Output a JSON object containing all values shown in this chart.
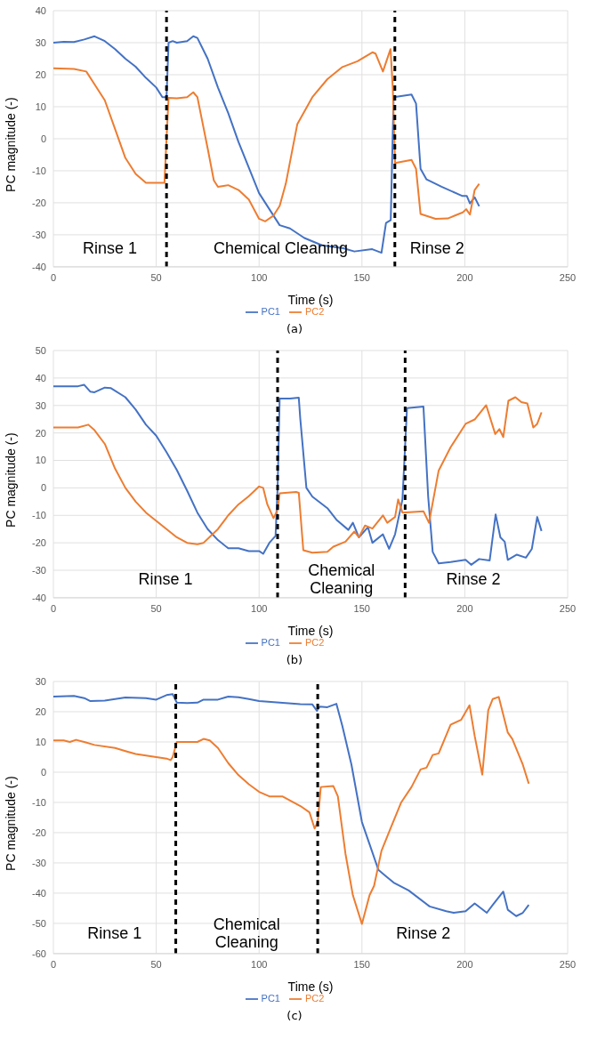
{
  "chart_data": [
    {
      "type": "line",
      "xlabel": "Time (s)",
      "ylabel": "PC magnitude (-)",
      "xlim": [
        0,
        250
      ],
      "xticks": [
        0,
        50,
        100,
        150,
        200,
        250
      ],
      "ylim": [
        -40,
        40
      ],
      "yticks": [
        -40,
        -30,
        -20,
        -10,
        0,
        10,
        20,
        30,
        40
      ],
      "grid": true,
      "legend": "bottom",
      "series": [
        {
          "name": "PC1",
          "color": "#4472c4",
          "x": [
            0,
            5,
            10,
            15,
            20,
            25,
            30,
            35,
            40,
            45,
            50,
            53,
            55,
            56,
            58,
            60,
            65,
            68,
            70,
            75,
            80,
            85,
            90,
            95,
            100,
            105,
            110,
            115,
            122,
            130.6,
            140.9,
            146.3,
            155,
            159.5,
            161.7,
            164,
            165.4,
            174.1,
            176.3,
            178.5,
            181.4,
            188.7,
            198.9,
            201,
            202.5,
            204.8,
            207
          ],
          "values": [
            30,
            30.3,
            30.2,
            31,
            32,
            30.5,
            28,
            25,
            22.5,
            19,
            16,
            13,
            13,
            30,
            30.5,
            30,
            30.5,
            32,
            31.5,
            25,
            16,
            8,
            -1,
            -9,
            -17,
            -22,
            -27,
            -28,
            -31,
            -33.3,
            -34.2,
            -35.2,
            -34.5,
            -35.6,
            -26.3,
            -25.4,
            13,
            13.8,
            11,
            -9.4,
            -12.7,
            -15,
            -17.9,
            -17.9,
            -20.2,
            -18.3,
            -21.1
          ]
        },
        {
          "name": "PC2",
          "color": "#ed7d31",
          "x": [
            0,
            10,
            16,
            20,
            25,
            30,
            35,
            40,
            45,
            50,
            54,
            55,
            56,
            60,
            65,
            68,
            70,
            75,
            78,
            80,
            85,
            90,
            95,
            100,
            103,
            107,
            110,
            113,
            116,
            118.6,
            125.9,
            133.2,
            140.5,
            147.8,
            155.1,
            156.6,
            160.2,
            163.9,
            165,
            166.1,
            174.1,
            176.3,
            178.5,
            185.8,
            191.7,
            199,
            200.7,
            202.5,
            204.8,
            207
          ],
          "values": [
            22,
            21.8,
            21,
            17,
            12,
            3,
            -6,
            -11,
            -13.8,
            -13.8,
            -13.8,
            0,
            12.8,
            12.6,
            13,
            14.5,
            13,
            -3,
            -13,
            -15,
            -14.5,
            -16,
            -19,
            -25,
            -25.8,
            -24,
            -21,
            -14,
            -4,
            4.6,
            13,
            18.6,
            22.4,
            24.2,
            27,
            26.6,
            21,
            28,
            15.8,
            -7.6,
            -6.6,
            -9.4,
            -23.5,
            -25,
            -24.9,
            -23,
            -22,
            -23.7,
            -16,
            -14.1
          ]
        }
      ],
      "ref_lines": [
        {
          "axis": "x",
          "value": 55,
          "color": "#000000",
          "line_style": "dashed"
        },
        {
          "axis": "x",
          "value": 166,
          "color": "#000000",
          "line_style": "dashed"
        }
      ],
      "annotations": [
        "Rinse 1",
        "Chemical Cleaning",
        "Rinse 2",
        "(a)"
      ]
    },
    {
      "type": "line",
      "xlabel": "Time (s)",
      "ylabel": "PC magnitude (-)",
      "xlim": [
        0,
        250
      ],
      "xticks": [
        0,
        50,
        100,
        150,
        200,
        250
      ],
      "ylim": [
        -40,
        50
      ],
      "yticks": [
        -40,
        -30,
        -20,
        -10,
        0,
        10,
        20,
        30,
        40,
        50
      ],
      "grid": true,
      "legend": "bottom",
      "series": [
        {
          "name": "PC1",
          "color": "#4472c4",
          "x": [
            0,
            12,
            15,
            18,
            20,
            25,
            28,
            35,
            40,
            45,
            50,
            55,
            60,
            65,
            70,
            75,
            80,
            85,
            90,
            95,
            100,
            102,
            105,
            108,
            109,
            110,
            115,
            119.3,
            120,
            123,
            125.9,
            133.2,
            137.6,
            143.4,
            145.6,
            148.5,
            152.9,
            155.1,
            160.2,
            163.2,
            166.1,
            169.7,
            171.9,
            179.9,
            182.2,
            184.4,
            187.3,
            193.1,
            200.4,
            203.1,
            207,
            212.1,
            215,
            217.3,
            219.4,
            220.9,
            225.3,
            229.7,
            232.6,
            235.2,
            237.3
          ],
          "values": [
            37,
            37,
            37.5,
            35,
            34.8,
            36.5,
            36.3,
            33,
            28.5,
            23,
            19,
            13,
            6.5,
            -1,
            -9,
            -15,
            -19,
            -22,
            -22,
            -23,
            -23,
            -24,
            -20,
            -17.5,
            0,
            32.5,
            32.5,
            32.8,
            25.4,
            0,
            -3.2,
            -7.4,
            -11.6,
            -15.3,
            -12.7,
            -18,
            -14.3,
            -20,
            -16.9,
            -22.2,
            -16.9,
            -4.2,
            29,
            29.6,
            -3.2,
            -23.3,
            -27.5,
            -27,
            -26.2,
            -28,
            -25.9,
            -26.4,
            -9.7,
            -18,
            -19.6,
            -26.2,
            -24.3,
            -25.4,
            -22.2,
            -10.6,
            -15.7
          ]
        },
        {
          "name": "PC2",
          "color": "#ed7d31",
          "x": [
            0,
            12,
            17,
            20,
            25,
            30,
            35,
            40,
            45,
            50,
            55,
            60,
            65,
            70,
            73,
            80,
            85,
            90,
            95,
            100,
            102,
            104,
            107,
            109,
            110,
            118,
            119.3,
            121.5,
            125.9,
            133.2,
            136.1,
            142,
            146.3,
            148.5,
            151.5,
            155.1,
            160.2,
            162.3,
            166.1,
            167.6,
            169.7,
            179.9,
            182.6,
            187.3,
            193.1,
            200.4,
            204.8,
            210.4,
            214.8,
            216.8,
            218.7,
            221.2,
            224.6,
            227.5,
            230.4,
            233.3,
            235.2,
            237.3
          ],
          "values": [
            22,
            22,
            23,
            21,
            16,
            7,
            0,
            -5,
            -9,
            -12,
            -15,
            -18,
            -20,
            -20.5,
            -20,
            -15,
            -10,
            -6,
            -3,
            0.5,
            0,
            -6,
            -11,
            -8,
            -2,
            -1.5,
            -1.8,
            -22.7,
            -23.6,
            -23.3,
            -21.4,
            -19.6,
            -15.9,
            -18,
            -13.7,
            -14.8,
            -10,
            -12.7,
            -10.6,
            -4.2,
            -9,
            -8.5,
            -12.7,
            6.3,
            14.8,
            23.3,
            24.9,
            30.1,
            19.6,
            21.4,
            18.5,
            31.7,
            33,
            31.2,
            30.7,
            22,
            23.3,
            27.5
          ]
        }
      ],
      "ref_lines": [
        {
          "axis": "x",
          "value": 109,
          "color": "#000000",
          "line_style": "dashed"
        },
        {
          "axis": "x",
          "value": 171,
          "color": "#000000",
          "line_style": "dashed"
        }
      ],
      "annotations": [
        "Rinse 1",
        "Chemical\nCleaning",
        "Rinse 2",
        "(b)"
      ]
    },
    {
      "type": "line",
      "xlabel": "Time (s)",
      "ylabel": "PC magnitude (-)",
      "xlim": [
        0,
        250
      ],
      "xticks": [
        0,
        50,
        100,
        150,
        200,
        250
      ],
      "ylim": [
        -60,
        30
      ],
      "yticks": [
        -60,
        -50,
        -40,
        -30,
        -20,
        -10,
        0,
        10,
        20,
        30
      ],
      "grid": true,
      "legend": "bottom",
      "series": [
        {
          "name": "PC1",
          "color": "#4472c4",
          "x": [
            0,
            10,
            15,
            18,
            25,
            35,
            45,
            50,
            55,
            58,
            60,
            65,
            70,
            73,
            80,
            85,
            90,
            95,
            100,
            110,
            120,
            125.9,
            128.1,
            129.5,
            133.2,
            137.6,
            140.5,
            144.9,
            150,
            153.7,
            158,
            161.7,
            165.4,
            172.7,
            182.9,
            191,
            194.6,
            200.4,
            204.8,
            210.7,
            213.6,
            218.7,
            220.9,
            225,
            228.2,
            231.1
          ],
          "values": [
            25,
            25.2,
            24.5,
            23.5,
            23.7,
            24.7,
            24.5,
            24,
            25.5,
            25.8,
            23,
            22.9,
            23,
            24,
            24,
            25,
            24.8,
            24.2,
            23.5,
            23,
            22.5,
            22.4,
            20.3,
            21.7,
            21.5,
            22.6,
            15.2,
            2.5,
            -16.5,
            -23.8,
            -32.3,
            -34.4,
            -36.5,
            -39.1,
            -44.4,
            -46,
            -46.5,
            -46,
            -43.4,
            -46.5,
            -43.9,
            -39.5,
            -45.5,
            -47.6,
            -46.5,
            -43.9
          ]
        },
        {
          "name": "PC2",
          "color": "#ed7d31",
          "x": [
            0,
            5,
            8,
            11,
            15,
            20,
            30,
            35,
            40,
            45,
            50,
            55,
            57,
            58,
            60,
            65,
            70,
            73,
            76,
            80,
            85,
            90,
            95,
            100,
            105,
            111.3,
            120.1,
            124.5,
            127,
            128.5,
            130,
            136.1,
            138.3,
            142,
            145.6,
            150,
            153.7,
            155.9,
            159.5,
            163.9,
            169,
            174.1,
            178.5,
            181.4,
            184.4,
            187.3,
            193.1,
            198.2,
            202.3,
            204.8,
            208.5,
            211.4,
            213.6,
            216.5,
            220.9,
            223.1,
            228.2,
            231.1
          ],
          "values": [
            10.5,
            10.5,
            10,
            10.7,
            10,
            9,
            8,
            7,
            6,
            5.5,
            5,
            4.5,
            4,
            5,
            10,
            10,
            10,
            11,
            10.5,
            8,
            3,
            -1,
            -4,
            -6.5,
            -8,
            -8,
            -11.2,
            -13.3,
            -18.6,
            -16.5,
            -4.9,
            -4.6,
            -8,
            -27,
            -40.7,
            -50.2,
            -40.7,
            -37.6,
            -26,
            -18.6,
            -10.1,
            -4.9,
            0.9,
            1.5,
            5.7,
            6.2,
            15.7,
            17.3,
            22.1,
            12,
            -0.8,
            20.5,
            24.2,
            24.9,
            13.1,
            11,
            2.5,
            -3.8
          ]
        }
      ],
      "ref_lines": [
        {
          "axis": "x",
          "value": 59.5,
          "color": "#000000",
          "line_style": "dashed"
        },
        {
          "axis": "x",
          "value": 128.5,
          "color": "#000000",
          "line_style": "dashed"
        }
      ],
      "annotations": [
        "Rinse 1",
        "Chemical\nCleaning",
        "Rinse 2",
        "(c)"
      ]
    }
  ]
}
